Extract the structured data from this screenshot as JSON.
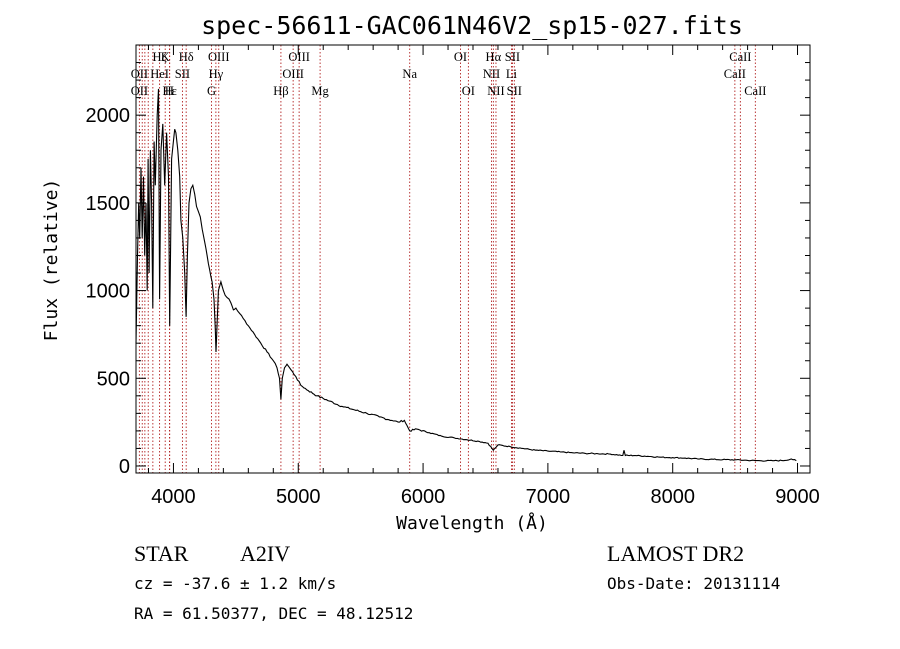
{
  "chart_data": {
    "type": "line",
    "title": "spec-56611-GAC061N46V2_sp15-027.fits",
    "xlabel": "Wavelength (Å)",
    "ylabel": "Flux (relative)",
    "xlim": [
      3700,
      9100
    ],
    "ylim": [
      -40,
      2400
    ],
    "xticks": [
      4000,
      5000,
      6000,
      7000,
      8000,
      9000
    ],
    "yticks": [
      0,
      500,
      1000,
      1500,
      2000
    ],
    "xtick_labels": [
      "4000",
      "5000",
      "6000",
      "7000",
      "8000",
      "9000"
    ],
    "ytick_labels": [
      "0",
      "500",
      "1000",
      "1500",
      "2000"
    ],
    "series": [
      {
        "name": "spectrum",
        "points": [
          [
            3700,
            700
          ],
          [
            3712,
            1200
          ],
          [
            3722,
            1500
          ],
          [
            3730,
            1300
          ],
          [
            3740,
            1700
          ],
          [
            3750,
            1300
          ],
          [
            3760,
            1650
          ],
          [
            3770,
            1200
          ],
          [
            3780,
            1500
          ],
          [
            3790,
            1000
          ],
          [
            3797,
            1750
          ],
          [
            3805,
            1100
          ],
          [
            3815,
            1800
          ],
          [
            3825,
            1500
          ],
          [
            3835,
            900
          ],
          [
            3845,
            1850
          ],
          [
            3855,
            1600
          ],
          [
            3870,
            2000
          ],
          [
            3880,
            2150
          ],
          [
            3889,
            950
          ],
          [
            3900,
            1800
          ],
          [
            3915,
            1950
          ],
          [
            3930,
            1600
          ],
          [
            3945,
            1900
          ],
          [
            3960,
            1650
          ],
          [
            3970,
            800
          ],
          [
            3985,
            1750
          ],
          [
            4000,
            1850
          ],
          [
            4010,
            1920
          ],
          [
            4020,
            1900
          ],
          [
            4035,
            1800
          ],
          [
            4050,
            1650
          ],
          [
            4060,
            1400
          ],
          [
            4075,
            1300
          ],
          [
            4090,
            1100
          ],
          [
            4101,
            850
          ],
          [
            4112,
            1200
          ],
          [
            4125,
            1500
          ],
          [
            4140,
            1580
          ],
          [
            4155,
            1600
          ],
          [
            4170,
            1550
          ],
          [
            4185,
            1480
          ],
          [
            4200,
            1450
          ],
          [
            4215,
            1420
          ],
          [
            4230,
            1350
          ],
          [
            4250,
            1280
          ],
          [
            4270,
            1200
          ],
          [
            4290,
            1120
          ],
          [
            4310,
            1050
          ],
          [
            4325,
            950
          ],
          [
            4335,
            780
          ],
          [
            4341,
            650
          ],
          [
            4348,
            780
          ],
          [
            4360,
            1000
          ],
          [
            4380,
            1050
          ],
          [
            4400,
            1000
          ],
          [
            4430,
            960
          ],
          [
            4460,
            930
          ],
          [
            4480,
            890
          ],
          [
            4500,
            900
          ],
          [
            4530,
            870
          ],
          [
            4560,
            840
          ],
          [
            4600,
            800
          ],
          [
            4650,
            750
          ],
          [
            4700,
            700
          ],
          [
            4750,
            650
          ],
          [
            4800,
            600
          ],
          [
            4830,
            560
          ],
          [
            4850,
            500
          ],
          [
            4861,
            380
          ],
          [
            4872,
            500
          ],
          [
            4890,
            560
          ],
          [
            4910,
            580
          ],
          [
            4940,
            550
          ],
          [
            4980,
            510
          ],
          [
            5020,
            460
          ],
          [
            5080,
            430
          ],
          [
            5150,
            400
          ],
          [
            5250,
            370
          ],
          [
            5350,
            340
          ],
          [
            5450,
            320
          ],
          [
            5550,
            300
          ],
          [
            5650,
            280
          ],
          [
            5750,
            260
          ],
          [
            5800,
            250
          ],
          [
            5850,
            260
          ],
          [
            5893,
            200
          ],
          [
            5950,
            210
          ],
          [
            6050,
            190
          ],
          [
            6150,
            170
          ],
          [
            6250,
            160
          ],
          [
            6350,
            150
          ],
          [
            6450,
            140
          ],
          [
            6520,
            130
          ],
          [
            6563,
            90
          ],
          [
            6600,
            120
          ],
          [
            6700,
            110
          ],
          [
            6800,
            100
          ],
          [
            6900,
            90
          ],
          [
            7000,
            85
          ],
          [
            7100,
            80
          ],
          [
            7200,
            75
          ],
          [
            7300,
            72
          ],
          [
            7400,
            70
          ],
          [
            7500,
            68
          ],
          [
            7600,
            60
          ],
          [
            7610,
            90
          ],
          [
            7620,
            60
          ],
          [
            7700,
            60
          ],
          [
            7800,
            55
          ],
          [
            7900,
            50
          ],
          [
            8000,
            48
          ],
          [
            8100,
            45
          ],
          [
            8200,
            40
          ],
          [
            8300,
            38
          ],
          [
            8400,
            36
          ],
          [
            8500,
            35
          ],
          [
            8600,
            32
          ],
          [
            8700,
            30
          ],
          [
            8800,
            30
          ],
          [
            8900,
            32
          ],
          [
            8950,
            40
          ],
          [
            8990,
            30
          ]
        ]
      }
    ],
    "line_markers": [
      {
        "label": "Hζ",
        "wavelength": 3889,
        "row": 1
      },
      {
        "label": "OII",
        "wavelength": 3727,
        "row": 2
      },
      {
        "label": "OII",
        "wavelength": 3727,
        "row": 3
      },
      {
        "label": "K",
        "wavelength": 3934,
        "row": 1
      },
      {
        "label": "HeI",
        "wavelength": 3889,
        "row": 2
      },
      {
        "label": "Hε",
        "wavelength": 3970,
        "row": 3
      },
      {
        "label": "SII",
        "wavelength": 4072,
        "row": 2
      },
      {
        "label": "H",
        "wavelength": 3968,
        "row": 3
      },
      {
        "label": "Hδ",
        "wavelength": 4102,
        "row": 1
      },
      {
        "label": "OIII",
        "wavelength": 4363,
        "row": 1
      },
      {
        "label": "Hγ",
        "wavelength": 4340,
        "row": 2
      },
      {
        "label": "G",
        "wavelength": 4305,
        "row": 3
      },
      {
        "label": "Hβ",
        "wavelength": 4861,
        "row": 3
      },
      {
        "label": "OIII",
        "wavelength": 5007,
        "row": 1
      },
      {
        "label": "OIII",
        "wavelength": 4959,
        "row": 2
      },
      {
        "label": "Mg",
        "wavelength": 5175,
        "row": 3
      },
      {
        "label": "Na",
        "wavelength": 5893,
        "row": 2
      },
      {
        "label": "OI",
        "wavelength": 6300,
        "row": 1
      },
      {
        "label": "OI",
        "wavelength": 6363,
        "row": 3
      },
      {
        "label": "Hα",
        "wavelength": 6563,
        "row": 1
      },
      {
        "label": "SII",
        "wavelength": 6716,
        "row": 1
      },
      {
        "label": "NII",
        "wavelength": 6548,
        "row": 2
      },
      {
        "label": "Li",
        "wavelength": 6708,
        "row": 2
      },
      {
        "label": "NII",
        "wavelength": 6584,
        "row": 3
      },
      {
        "label": "SII",
        "wavelength": 6731,
        "row": 3
      },
      {
        "label": "CaII",
        "wavelength": 8542,
        "row": 1
      },
      {
        "label": "CaII",
        "wavelength": 8498,
        "row": 2
      },
      {
        "label": "CaII",
        "wavelength": 8662,
        "row": 3
      }
    ],
    "marker_lines": [
      3727,
      3750,
      3771,
      3798,
      3835,
      3889,
      3934,
      3968,
      3970,
      4072,
      4102,
      4305,
      4340,
      4363,
      4861,
      4959,
      5007,
      5175,
      5893,
      6300,
      6363,
      6548,
      6563,
      6584,
      6708,
      6716,
      6731,
      8498,
      8542,
      8662
    ]
  },
  "info": {
    "class": "STAR",
    "subclass": "A2IV",
    "survey": "LAMOST DR2",
    "cz": "cz = -37.6 ± 1.2 km/s",
    "obs_date": "Obs-Date: 20131114",
    "coords": "RA =  61.50377, DEC =  48.12512"
  }
}
